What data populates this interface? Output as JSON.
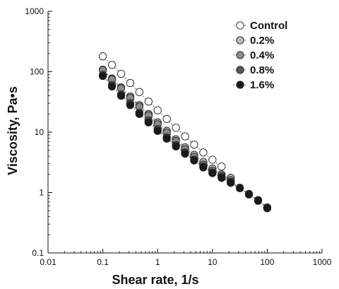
{
  "chart_data": {
    "type": "scatter",
    "title": "",
    "xlabel": "Shear rate, 1/s",
    "ylabel": "Viscosity, Pa•s",
    "xscale": "log",
    "yscale": "log",
    "xlim": [
      0.01,
      1000
    ],
    "ylim": [
      0.1,
      1000
    ],
    "xticks": [
      "0.01",
      "0.1",
      "1",
      "10",
      "100",
      "1000"
    ],
    "yticks": [
      "0.1",
      "1",
      "10",
      "100",
      "1000"
    ],
    "grid": false,
    "legend_position": "top-right",
    "series": [
      {
        "name": "Control",
        "fill": "#ffffff",
        "x": [
          0.1,
          0.1468,
          0.2154,
          0.3162,
          0.4642,
          0.6813,
          1.0,
          1.468,
          2.154,
          3.162,
          4.642,
          6.813,
          10.0,
          14.68
        ],
        "y": [
          180,
          130,
          92,
          65,
          46,
          32,
          23,
          16.5,
          11.8,
          8.5,
          6.2,
          4.6,
          3.5,
          2.7
        ]
      },
      {
        "name": "0.2%",
        "fill": "#b8b8b8",
        "x": [
          0.1,
          0.1468,
          0.2154,
          0.3162,
          0.4642,
          0.6813,
          1.0,
          1.468,
          2.154,
          3.162,
          4.642,
          6.813,
          10.0,
          14.68,
          21.54
        ],
        "y": [
          108,
          77,
          55,
          39,
          28,
          20,
          14.5,
          10.5,
          7.6,
          5.6,
          4.2,
          3.2,
          2.5,
          2.0,
          1.75
        ]
      },
      {
        "name": "0.4%",
        "fill": "#8a8a8a",
        "x": [
          0.1,
          0.1468,
          0.2154,
          0.3162,
          0.4642,
          0.6813,
          1.0,
          1.468,
          2.154,
          3.162,
          4.642,
          6.813,
          10.0,
          14.68,
          21.54
        ],
        "y": [
          106,
          75,
          53,
          37,
          26.5,
          19,
          13.5,
          9.8,
          7.1,
          5.2,
          3.9,
          2.9,
          2.3,
          1.9,
          1.6
        ]
      },
      {
        "name": "0.8%",
        "fill": "#555555",
        "x": [
          0.1,
          0.1468,
          0.2154,
          0.3162,
          0.4642,
          0.6813,
          1.0,
          1.468,
          2.154,
          3.162,
          4.642,
          6.813,
          10.0,
          14.68,
          21.54,
          31.62,
          46.42,
          68.13,
          100
        ],
        "y": [
          88,
          60,
          42,
          30,
          21,
          15.5,
          11.2,
          8.2,
          6.1,
          4.6,
          3.5,
          2.7,
          2.15,
          1.8,
          1.5,
          1.2,
          0.95,
          0.75,
          0.57
        ]
      },
      {
        "name": "1.6%",
        "fill": "#1a1a1a",
        "x": [
          0.1,
          0.1468,
          0.2154,
          0.3162,
          0.4642,
          0.6813,
          1.0,
          1.468,
          2.154,
          3.162,
          4.642,
          6.813,
          10.0,
          14.68,
          21.54,
          31.62,
          46.42,
          68.13,
          100
        ],
        "y": [
          85,
          57,
          40,
          28,
          20,
          14.5,
          10.5,
          7.8,
          5.8,
          4.4,
          3.4,
          2.6,
          2.1,
          1.75,
          1.45,
          1.18,
          0.93,
          0.73,
          0.55
        ]
      }
    ]
  }
}
